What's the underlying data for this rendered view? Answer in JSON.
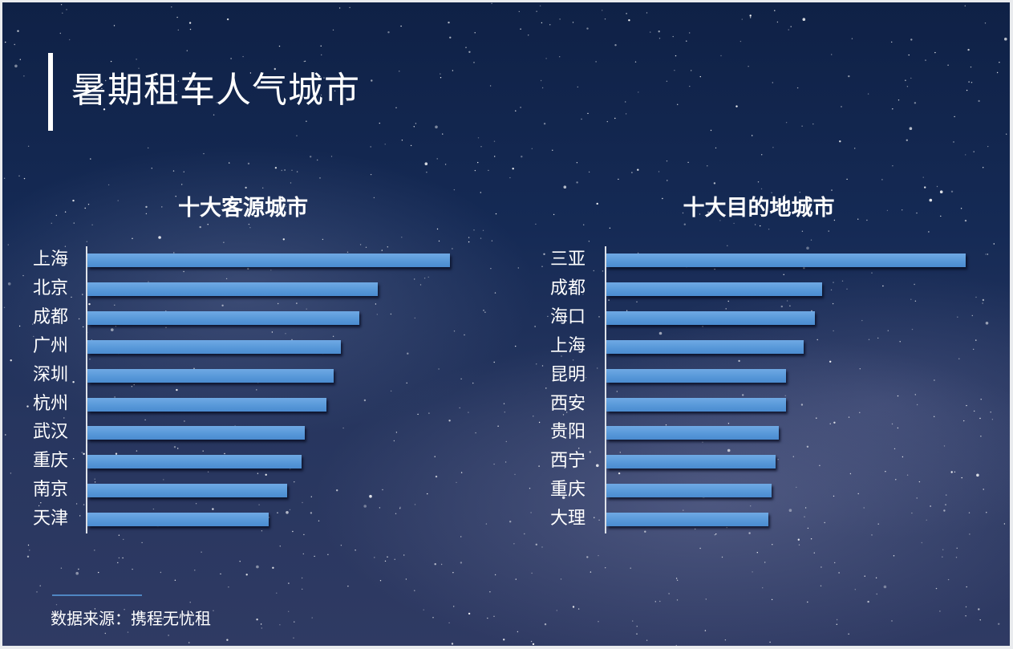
{
  "page": {
    "title": "暑期租车人气城市",
    "source_text": "数据来源：携程无忧租"
  },
  "colors": {
    "bar": "#5a9ada",
    "background": "#152a55",
    "text": "#ffffff"
  },
  "chart_data": [
    {
      "type": "bar",
      "orientation": "horizontal",
      "title": "十大客源城市",
      "categories": [
        "上海",
        "北京",
        "成都",
        "广州",
        "深圳",
        "杭州",
        "武汉",
        "重庆",
        "南京",
        "天津"
      ],
      "values": [
        100,
        80,
        75,
        70,
        68,
        66,
        60,
        59,
        55,
        50
      ],
      "value_note": "relative bar length (max = 100); no numeric axis shown",
      "xlabel": "",
      "ylabel": "",
      "grid": false,
      "legend": null
    },
    {
      "type": "bar",
      "orientation": "horizontal",
      "title": "十大目的地城市",
      "categories": [
        "三亚",
        "成都",
        "海口",
        "上海",
        "昆明",
        "西安",
        "贵阳",
        "西宁",
        "重庆",
        "大理"
      ],
      "values": [
        100,
        60,
        58,
        55,
        50,
        50,
        48,
        47,
        46,
        45
      ],
      "value_note": "relative bar length (max = 100); no numeric axis shown",
      "xlabel": "",
      "ylabel": "",
      "grid": false,
      "legend": null
    }
  ]
}
